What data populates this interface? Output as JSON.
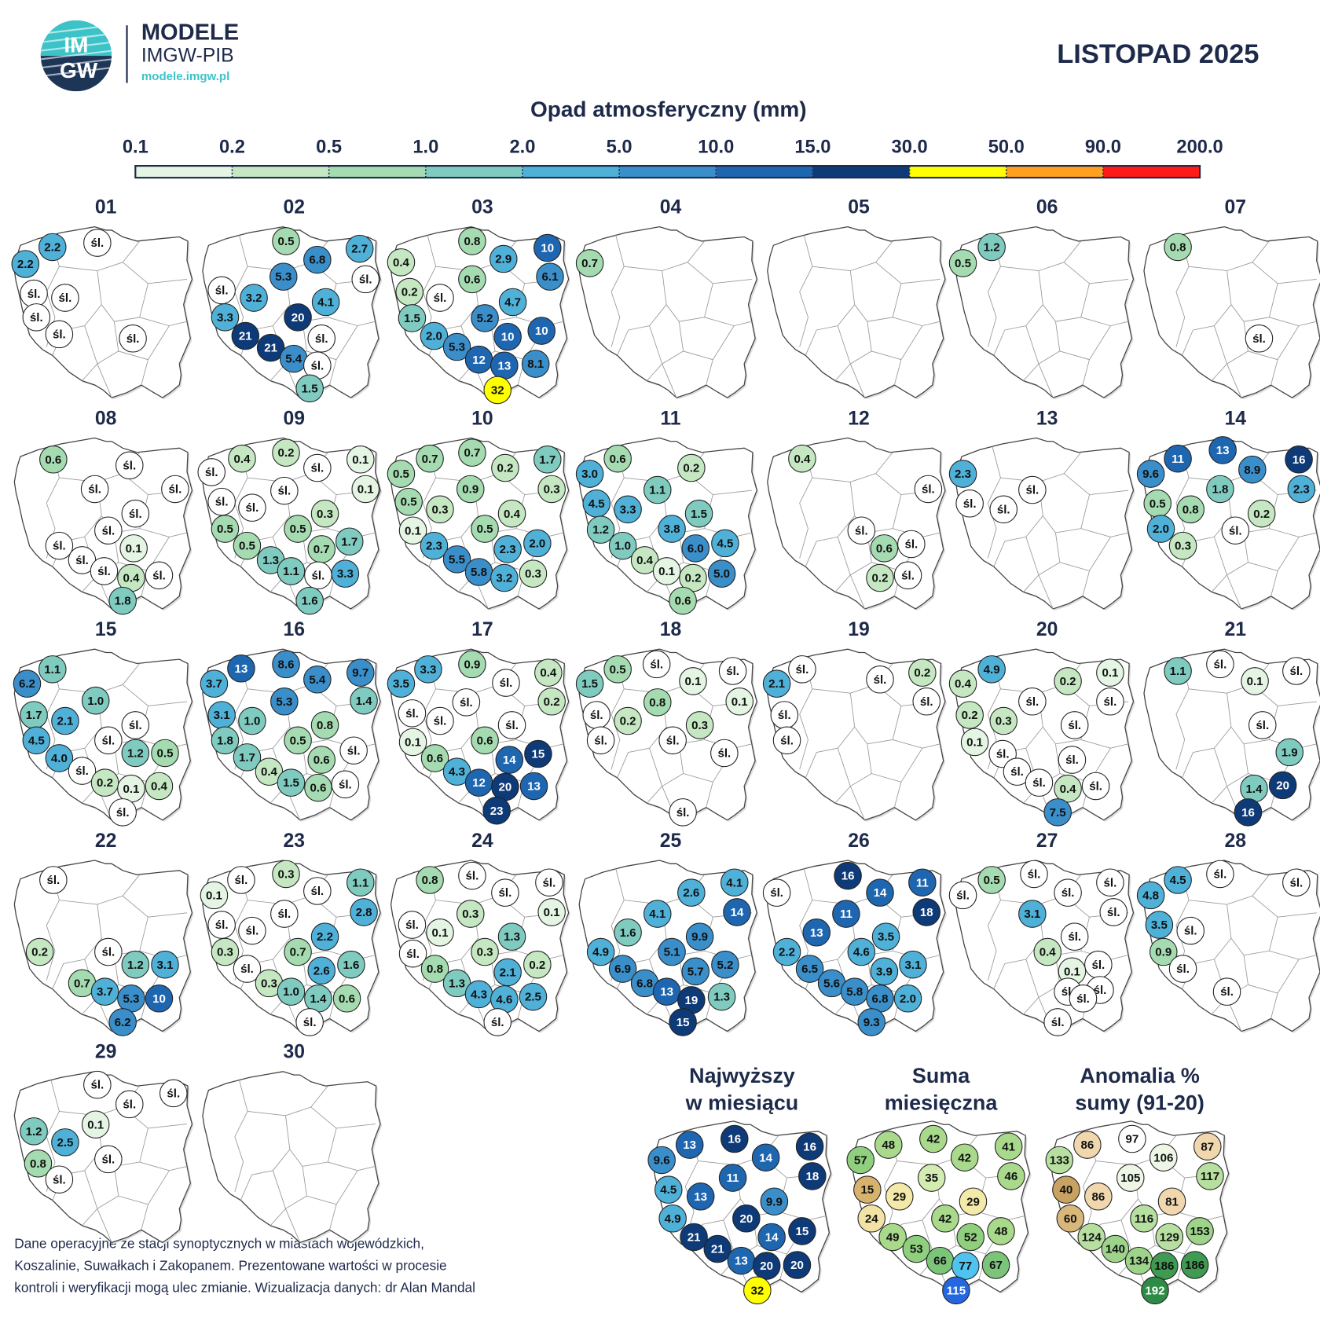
{
  "header": {
    "logo": [
      "IM",
      "GW"
    ],
    "brand": "MODELE",
    "org": "IMGW-PIB",
    "site": "modele.imgw.pl"
  },
  "title": "LISTOPAD 2025",
  "legend": {
    "title": "Opad atmosferyczny (mm)",
    "ticks": [
      0.1,
      0.2,
      0.5,
      {
        "value": 1,
        "label": "1.0"
      },
      {
        "value": 2,
        "label": "2.0"
      },
      {
        "value": 5,
        "label": "5.0"
      },
      {
        "value": 10,
        "label": "10.0"
      },
      {
        "value": 15,
        "label": "15.0"
      },
      {
        "value": 30,
        "label": "30.0"
      },
      {
        "value": 50,
        "label": "50.0"
      },
      {
        "value": 90,
        "label": "90.0"
      },
      {
        "value": 200,
        "label": "200.0"
      }
    ],
    "colors": [
      "#e4f5e4",
      "#c5e8c3",
      "#a5dbb0",
      "#7fcbc0",
      "#4fb0d8",
      "#3a8ec9",
      "#1f66b0",
      "#0e3a78",
      "#ffff00",
      "#ffa020",
      "#ff1a1a"
    ]
  },
  "days": [
    {
      "label": "01",
      "readings": [
        2.2,
        "śl.",
        2.2,
        "śl.",
        "śl.",
        "śl.",
        "śl.",
        "śl."
      ]
    },
    {
      "label": "02",
      "readings": [
        0.5,
        6.8,
        2.7,
        5.3,
        "śl.",
        "śl.",
        3.2,
        4.1,
        3.3,
        20,
        21,
        "śl.",
        21,
        5.4,
        "śl.",
        1.5
      ]
    },
    {
      "label": "03",
      "readings": [
        0.8,
        10,
        0.4,
        2.9,
        0.6,
        6.1,
        0.2,
        "śl.",
        4.7,
        1.5,
        5.2,
        {
          "value": 2,
          "label": "2.0"
        },
        10,
        10,
        5.3,
        12,
        13,
        8.1,
        32
      ]
    },
    {
      "label": "04",
      "readings": [
        0.7
      ]
    },
    {
      "label": "05",
      "readings": []
    },
    {
      "label": "06",
      "readings": [
        1.2,
        0.5
      ]
    },
    {
      "label": "07",
      "readings": [
        0.8,
        "śl."
      ]
    },
    {
      "label": "08",
      "readings": [
        0.6,
        "śl.",
        "śl.",
        "śl.",
        "śl.",
        "śl.",
        0.1,
        "śl.",
        "śl.",
        "śl.",
        0.4,
        "śl.",
        1.8
      ]
    },
    {
      "label": "09",
      "readings": [
        "śl.",
        0.4,
        0.2,
        "śl.",
        0.1,
        0.1,
        "śl.",
        "śl.",
        "śl.",
        0.3,
        0.5,
        0.5,
        0.5,
        0.7,
        1.7,
        1.3,
        1.1,
        "śl.",
        3.3,
        1.6
      ]
    },
    {
      "label": "10",
      "readings": [
        0.7,
        0.7,
        1.7,
        0.5,
        0.2,
        0.3,
        0.9,
        0.5,
        0.3,
        0.4,
        0.1,
        0.5,
        {
          "value": 2,
          "label": "2.0"
        },
        2.3,
        2.3,
        5.5,
        5.8,
        3.2,
        0.3
      ]
    },
    {
      "label": "11",
      "readings": [
        {
          "value": 3,
          "label": "3.0"
        },
        0.6,
        0.2,
        1.1,
        4.5,
        3.3,
        1.5,
        1.2,
        3.8,
        {
          "value": 1,
          "label": "1.0"
        },
        {
          "value": 6,
          "label": "6.0"
        },
        4.5,
        0.4,
        0.1,
        0.2,
        {
          "value": 5,
          "label": "5.0"
        },
        0.6
      ]
    },
    {
      "label": "12",
      "readings": [
        0.4,
        "śl.",
        "śl.",
        0.6,
        "śl.",
        0.2,
        "śl."
      ]
    },
    {
      "label": "13",
      "readings": [
        2.3,
        "śl.",
        "śl.",
        "śl."
      ]
    },
    {
      "label": "14",
      "readings": [
        11,
        13,
        16,
        9.6,
        8.9,
        2.3,
        1.8,
        0.5,
        0.8,
        "śl.",
        0.2,
        {
          "value": 2,
          "label": "2.0"
        },
        0.3
      ]
    },
    {
      "label": "15",
      "readings": [
        1.1,
        6.2,
        {
          "value": 1,
          "label": "1.0"
        },
        1.7,
        2.1,
        "śl.",
        4.5,
        "śl.",
        1.2,
        0.5,
        {
          "value": 4,
          "label": "4.0"
        },
        "śl.",
        0.2,
        0.1,
        0.4,
        "śl."
      ]
    },
    {
      "label": "16",
      "readings": [
        13,
        8.6,
        3.7,
        5.4,
        9.7,
        1.4,
        5.3,
        3.1,
        {
          "value": 1,
          "label": "1.0"
        },
        0.8,
        1.8,
        0.5,
        "śl.",
        1.7,
        0.6,
        0.4,
        1.5,
        0.6,
        "śl."
      ]
    },
    {
      "label": "17",
      "readings": [
        3.3,
        0.9,
        3.5,
        "śl.",
        0.4,
        0.2,
        "śl.",
        "śl.",
        "śl.",
        "śl.",
        0.1,
        0.6,
        14,
        15,
        0.6,
        4.3,
        12,
        20,
        13,
        23
      ]
    },
    {
      "label": "18",
      "readings": [
        0.5,
        "śl.",
        1.5,
        0.1,
        "śl.",
        0.1,
        0.8,
        "śl.",
        0.2,
        0.3,
        "śl.",
        "śl.",
        "śl.",
        "śl."
      ]
    },
    {
      "label": "19",
      "readings": [
        "śl.",
        2.1,
        "śl.",
        0.2,
        "śl.",
        "śl.",
        "śl."
      ]
    },
    {
      "label": "20",
      "readings": [
        4.9,
        0.2,
        0.1,
        0.4,
        "śl.",
        "śl.",
        0.2,
        0.3,
        "śl.",
        0.1,
        "śl.",
        "śl.",
        "śl.",
        "śl.",
        0.4,
        "śl.",
        7.5
      ]
    },
    {
      "label": "21",
      "readings": [
        1.1,
        "śl.",
        0.1,
        "śl.",
        "śl.",
        1.9,
        1.4,
        20,
        16
      ]
    },
    {
      "label": "22",
      "readings": [
        "śl.",
        0.2,
        "śl.",
        1.2,
        3.1,
        0.7,
        3.7,
        5.3,
        10,
        6.2
      ]
    },
    {
      "label": "23",
      "readings": [
        "śl.",
        0.3,
        0.1,
        1.1,
        "śl.",
        "śl.",
        "śl.",
        2.8,
        "śl.",
        2.2,
        0.3,
        0.7,
        2.6,
        1.6,
        "śl.",
        0.3,
        {
          "value": 1,
          "label": "1.0"
        },
        1.4,
        0.6,
        "śl."
      ]
    },
    {
      "label": "24",
      "readings": [
        0.8,
        "śl.",
        "śl.",
        "śl.",
        0.1,
        0.3,
        "śl.",
        0.1,
        1.3,
        "śl.",
        0.3,
        2.1,
        0.2,
        0.8,
        1.3,
        4.3,
        4.6,
        2.5,
        "śl."
      ]
    },
    {
      "label": "25",
      "readings": [
        2.6,
        4.1,
        4.1,
        14,
        1.6,
        9.9,
        4.9,
        5.1,
        5.7,
        5.2,
        6.9,
        6.8,
        13,
        19,
        1.3,
        15
      ]
    },
    {
      "label": "26",
      "readings": [
        16,
        "śl.",
        14,
        11,
        11,
        18,
        13,
        3.5,
        2.2,
        4.6,
        3.1,
        3.9,
        6.5,
        5.6,
        5.8,
        6.8,
        {
          "value": 2,
          "label": "2.0"
        },
        9.3
      ]
    },
    {
      "label": "27",
      "readings": [
        "śl.",
        0.5,
        "śl.",
        "śl.",
        "śl.",
        "śl.",
        3.1,
        "śl.",
        0.4,
        "śl.",
        0.1,
        "śl.",
        "śl.",
        "śl.",
        "śl."
      ]
    },
    {
      "label": "28",
      "readings": [
        4.5,
        "śl.",
        "śl.",
        4.8,
        3.5,
        "śl.",
        0.9,
        "śl.",
        "śl."
      ]
    },
    {
      "label": "29",
      "readings": [
        "śl.",
        "śl.",
        "śl.",
        0.1,
        1.2,
        2.5,
        "śl.",
        0.8,
        "śl."
      ]
    },
    {
      "label": "30",
      "readings": []
    }
  ],
  "summaries": [
    {
      "title": [
        "Najwyższy",
        "w miesiącu"
      ],
      "readings": [
        13,
        16,
        9.6,
        14,
        16,
        18,
        11,
        4.5,
        13,
        9.9,
        4.9,
        20,
        15,
        14,
        21,
        21,
        13,
        20,
        20,
        32
      ]
    },
    {
      "title": [
        "Suma",
        "miesięczna"
      ],
      "readings": [
        48,
        42,
        57,
        42,
        41,
        46,
        35,
        15,
        29,
        29,
        24,
        42,
        48,
        52,
        49,
        53,
        66,
        77,
        67,
        115
      ],
      "colors": [
        "#a9da8c",
        "#a9da8c",
        "#8fcf7d",
        "#a9da8c",
        "#a9da8c",
        "#a9da8c",
        "#d3ecb2",
        "#d6b26c",
        "#f3e9a8",
        "#f3e9a8",
        "#f3e2a6",
        "#a9da8c",
        "#a9da8c",
        "#8fcf7d",
        "#a9da8c",
        "#8fcf7d",
        "#7cc47a",
        "#4fc3f0",
        "#7cc47a",
        "#2567de"
      ]
    },
    {
      "title": [
        "Anomalia %",
        "sumy (91-20)"
      ],
      "readings": [
        86,
        97,
        133,
        106,
        87,
        117,
        105,
        40,
        86,
        81,
        60,
        116,
        153,
        129,
        124,
        140,
        134,
        186,
        186,
        192
      ],
      "colors": [
        "#f0d7ae",
        "#ffffff",
        "#b7e0a0",
        "#eef6e6",
        "#f0d7ae",
        "#b7e0a0",
        "#eef6e6",
        "#c9a262",
        "#f0d7ae",
        "#f0d7ae",
        "#d9b77a",
        "#b7e0a0",
        "#9dd48a",
        "#b7e0a0",
        "#b7e0a0",
        "#9dd48a",
        "#9dd48a",
        "#3f9a52",
        "#3f9a52",
        "#2e8b46"
      ]
    }
  ],
  "footnote": [
    "Dane operacyjne ze stacji synoptycznych w miastach wojewódzkich,",
    "Koszalinie, Suwałkach i Zakopanem. Prezentowane wartości w procesie",
    "kontroli i weryfikacji mogą ulec zmianie. Wizualizacja danych: dr Alan Mandal"
  ]
}
